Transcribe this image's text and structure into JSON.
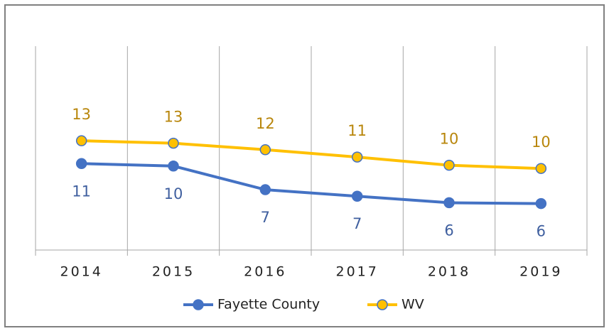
{
  "chart_data": {
    "type": "line",
    "categories": [
      "2014",
      "2015",
      "2016",
      "2017",
      "2018",
      "2019"
    ],
    "series": [
      {
        "name": "Fayette County",
        "color": "#4472c4",
        "label_color": "#3f5f9f",
        "values": [
          10.6,
          10.3,
          7.4,
          6.6,
          5.8,
          5.7
        ],
        "value_labels": [
          "11",
          "10",
          "7",
          "7",
          "6",
          "6"
        ]
      },
      {
        "name": "WV",
        "color": "#ffc000",
        "label_color": "#b8860b",
        "marker_edge": "#4472c4",
        "values": [
          13.4,
          13.1,
          12.3,
          11.4,
          10.4,
          10.0
        ],
        "value_labels": [
          "13",
          "13",
          "12",
          "11",
          "10",
          "10"
        ]
      }
    ],
    "ylim": [
      0,
      25
    ]
  }
}
